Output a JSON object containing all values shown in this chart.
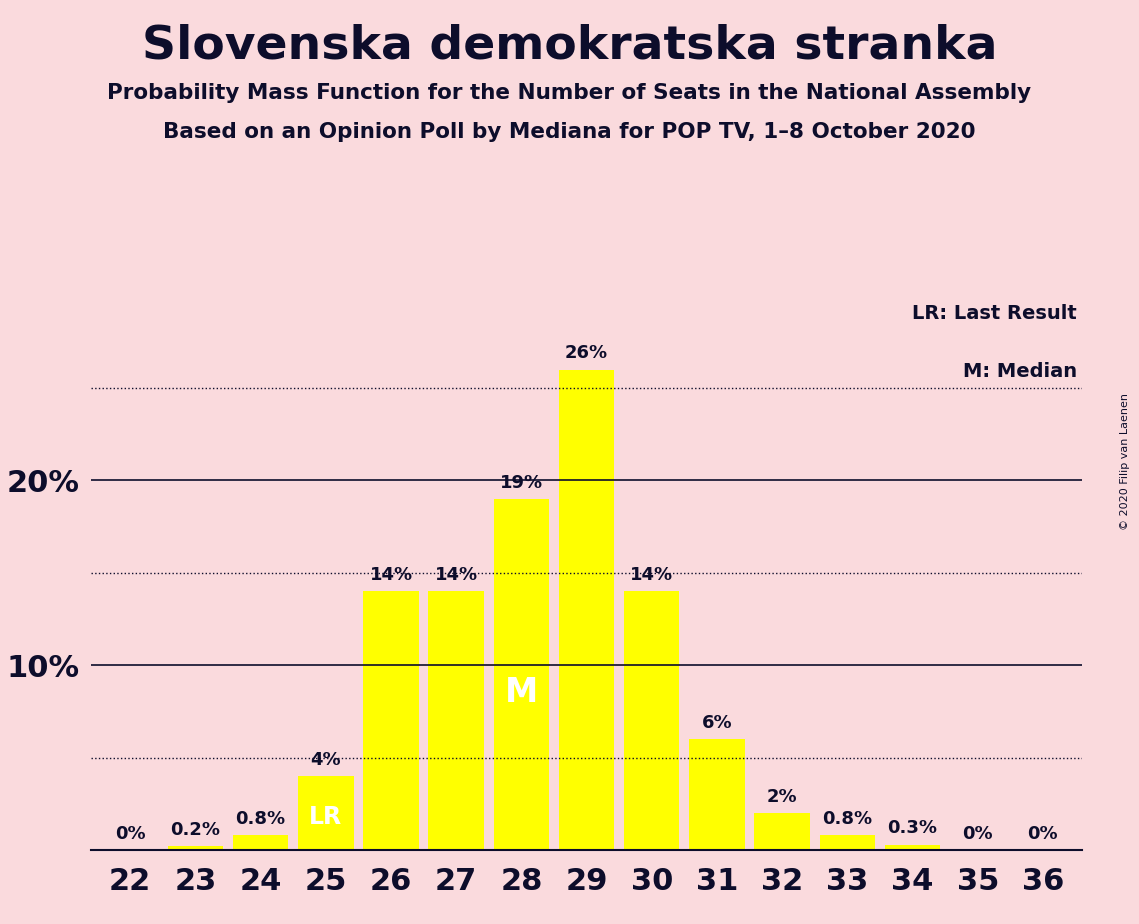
{
  "title": "Slovenska demokratska stranka",
  "subtitle1": "Probability Mass Function for the Number of Seats in the National Assembly",
  "subtitle2": "Based on an Opinion Poll by Mediana for POP TV, 1–8 October 2020",
  "copyright": "© 2020 Filip van Laenen",
  "categories": [
    22,
    23,
    24,
    25,
    26,
    27,
    28,
    29,
    30,
    31,
    32,
    33,
    34,
    35,
    36
  ],
  "values": [
    0.0,
    0.2,
    0.8,
    4.0,
    14.0,
    14.0,
    19.0,
    26.0,
    14.0,
    6.0,
    2.0,
    0.8,
    0.3,
    0.0,
    0.0
  ],
  "bar_color": "#FFFF00",
  "background_color": "#FADADD",
  "label_color": "#0d0d2b",
  "median_seat": 28,
  "lr_seat": 25,
  "dotted_lines": [
    5,
    15,
    25
  ],
  "solid_lines": [
    10,
    20
  ],
  "ymax": 30,
  "legend_lr": "LR: Last Result",
  "legend_m": "M: Median"
}
